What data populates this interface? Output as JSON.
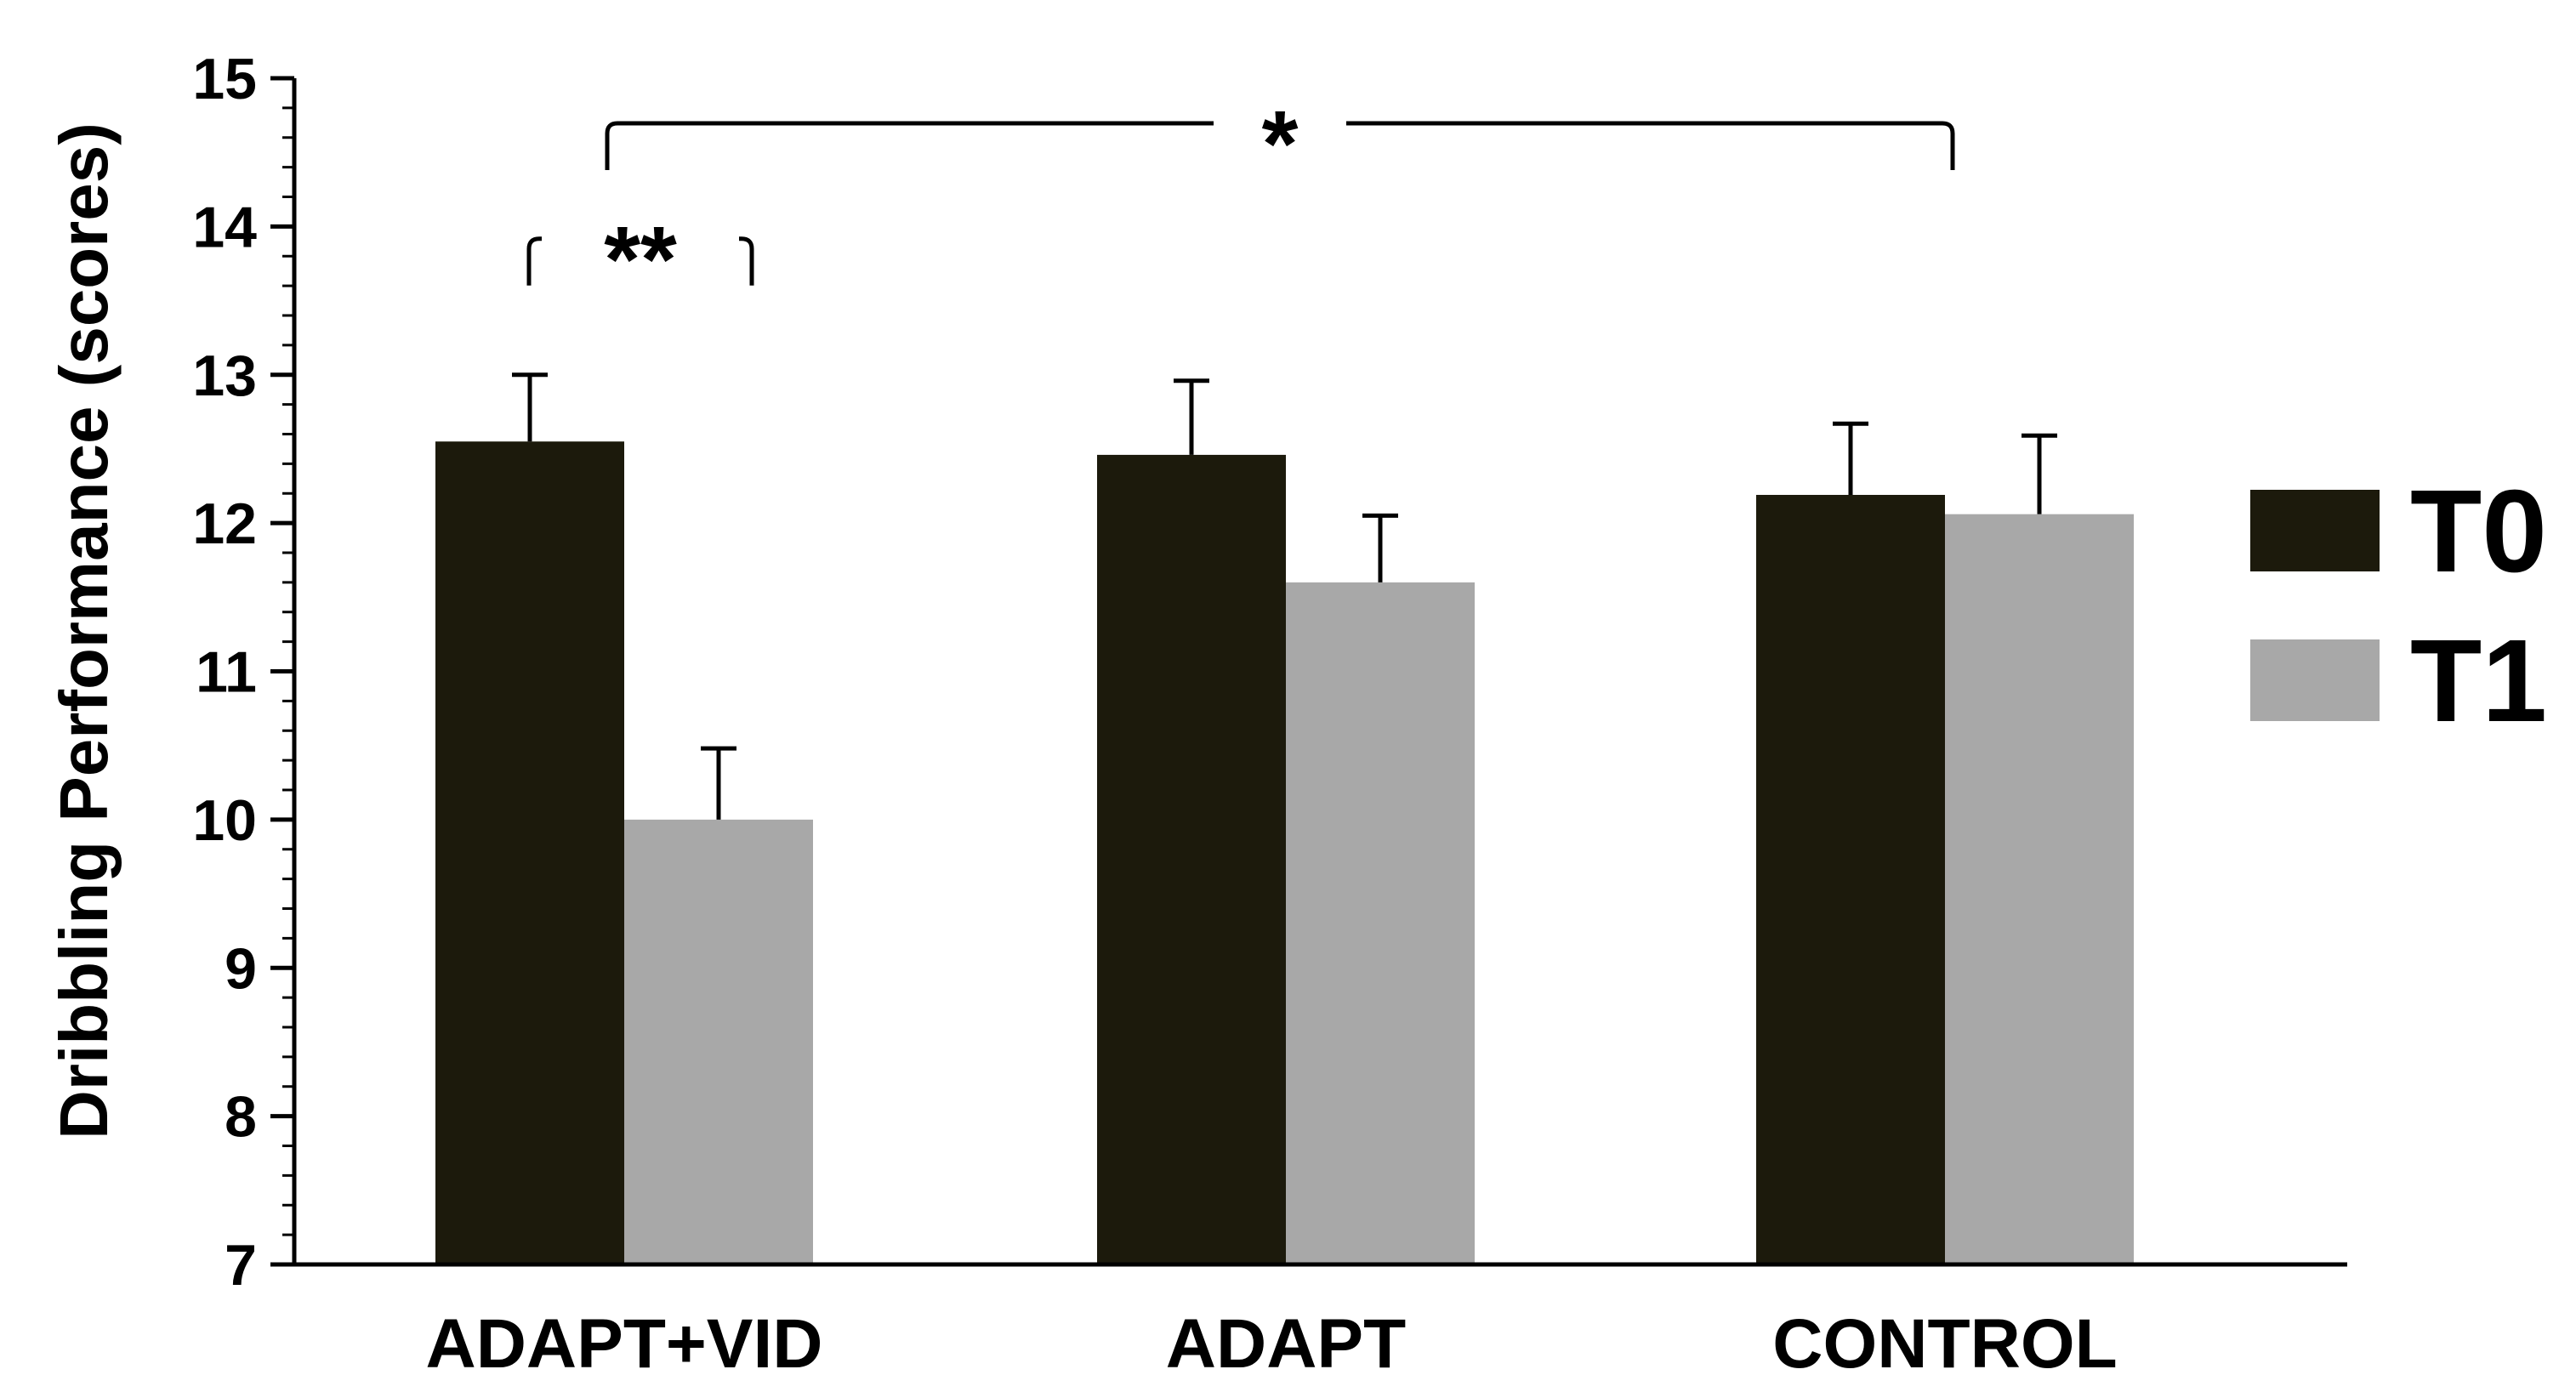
{
  "chart_data": {
    "type": "bar",
    "title": "",
    "xlabel": "",
    "ylabel": "Dribbling Performance (scores)",
    "ylim": [
      7,
      15
    ],
    "yticks": [
      7,
      8,
      9,
      10,
      11,
      12,
      13,
      14,
      15
    ],
    "grid": false,
    "legend_position": "right",
    "categories": [
      "ADAPT+VID",
      "ADAPT",
      "CONTROL"
    ],
    "series": [
      {
        "name": "T0",
        "color": "#1c1a0c",
        "values": [
          12.55,
          12.46,
          12.19
        ],
        "errors": [
          0.45,
          0.5,
          0.48
        ]
      },
      {
        "name": "T1",
        "color": "#a8a8a8",
        "values": [
          10.0,
          11.6,
          12.06
        ],
        "errors": [
          0.48,
          0.45,
          0.53
        ]
      }
    ],
    "annotations": [
      {
        "label": "**",
        "from_category": 0,
        "from_series": 0,
        "to_category": 0,
        "to_series": 1
      },
      {
        "label": "*",
        "from_category": 0,
        "from_series": 1,
        "to_category": 2,
        "to_series": 0
      }
    ]
  }
}
